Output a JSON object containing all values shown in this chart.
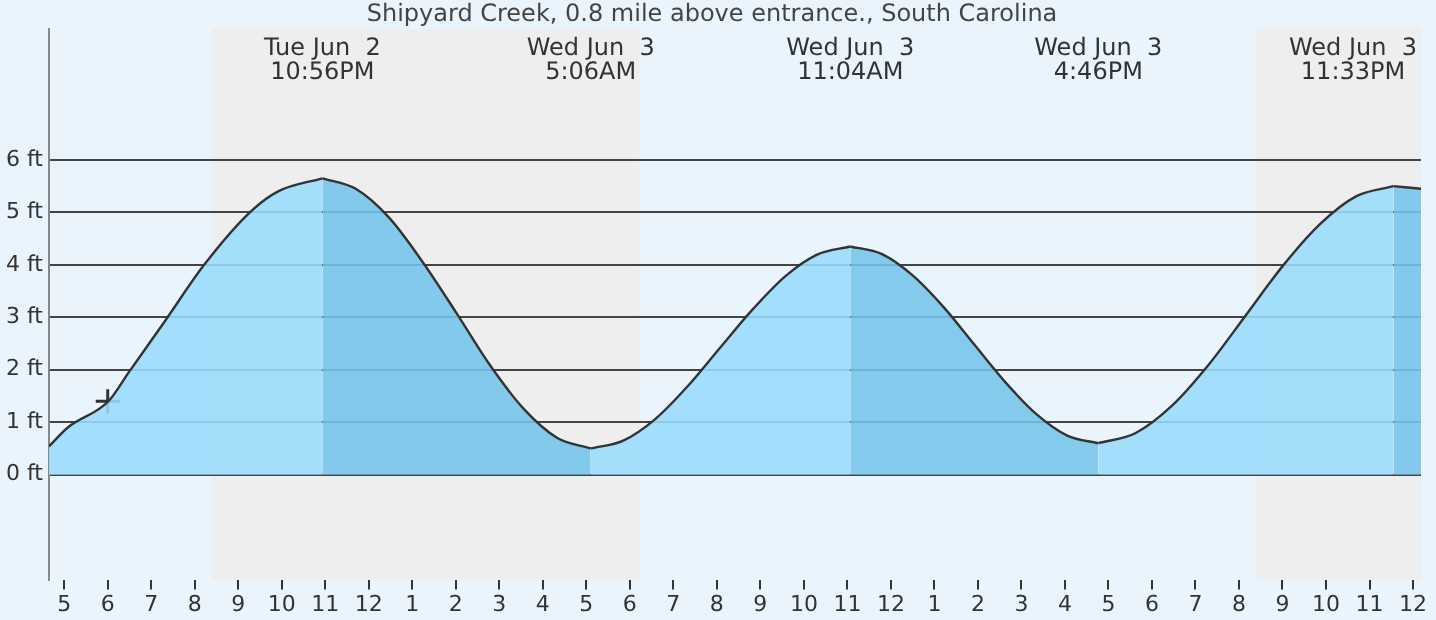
{
  "chart_data": {
    "type": "area",
    "title": "Shipyard Creek, 0.8 mile above entrance., South Carolina",
    "xlim": [
      "--06-02T16:39",
      "--06-04T00:11"
    ],
    "xticks": [
      {
        "value": "--06-02T17:00",
        "label": "5"
      },
      {
        "value": "--06-02T18:00",
        "label": "6"
      },
      {
        "value": "--06-02T19:00",
        "label": "7"
      },
      {
        "value": "--06-02T20:00",
        "label": "8"
      },
      {
        "value": "--06-02T21:00",
        "label": "9"
      },
      {
        "value": "--06-02T22:00",
        "label": "10"
      },
      {
        "value": "--06-02T23:00",
        "label": "11"
      },
      {
        "value": "--06-03T00:00",
        "label": "12"
      },
      {
        "value": "--06-03T01:00",
        "label": "1"
      },
      {
        "value": "--06-03T02:00",
        "label": "2"
      },
      {
        "value": "--06-03T03:00",
        "label": "3"
      },
      {
        "value": "--06-03T04:00",
        "label": "4"
      },
      {
        "value": "--06-03T05:00",
        "label": "5"
      },
      {
        "value": "--06-03T06:00",
        "label": "6"
      },
      {
        "value": "--06-03T07:00",
        "label": "7"
      },
      {
        "value": "--06-03T08:00",
        "label": "8"
      },
      {
        "value": "--06-03T09:00",
        "label": "9"
      },
      {
        "value": "--06-03T10:00",
        "label": "10"
      },
      {
        "value": "--06-03T11:00",
        "label": "11"
      },
      {
        "value": "--06-03T12:00",
        "label": "12"
      },
      {
        "value": "--06-03T13:00",
        "label": "1"
      },
      {
        "value": "--06-03T14:00",
        "label": "2"
      },
      {
        "value": "--06-03T15:00",
        "label": "3"
      },
      {
        "value": "--06-03T16:00",
        "label": "4"
      },
      {
        "value": "--06-03T17:00",
        "label": "5"
      },
      {
        "value": "--06-03T18:00",
        "label": "6"
      },
      {
        "value": "--06-03T19:00",
        "label": "7"
      },
      {
        "value": "--06-03T20:00",
        "label": "8"
      },
      {
        "value": "--06-03T21:00",
        "label": "9"
      },
      {
        "value": "--06-03T22:00",
        "label": "10"
      },
      {
        "value": "--06-03T23:00",
        "label": "11"
      },
      {
        "value": "--06-04T00:00",
        "label": "12"
      }
    ],
    "ylim": [
      -2,
      8.5
    ],
    "yticks": [
      {
        "value": 0,
        "label": "0 ft"
      },
      {
        "value": 1,
        "label": "1 ft"
      },
      {
        "value": 2,
        "label": "2 ft"
      },
      {
        "value": 3,
        "label": "3 ft"
      },
      {
        "value": 4,
        "label": "4 ft"
      },
      {
        "value": 5,
        "label": "5 ft"
      },
      {
        "value": 6,
        "label": "6 ft"
      }
    ],
    "grid": "y",
    "legend": false,
    "bands": [
      {
        "axis": "x",
        "from": "--06-02T20:23",
        "to": "--06-03T06:13",
        "color": "#eeeeee"
      },
      {
        "axis": "x",
        "from": "--06-03T20:24",
        "to": "--06-04T00:11",
        "color": "#eeeeee"
      }
    ],
    "annotations": [
      "Tue Jun  2\n10:56PM",
      "Wed Jun  3\n5:06AM",
      "Wed Jun  3\n11:04AM",
      "Wed Jun  3\n4:46PM",
      "Wed Jun  3\n11:33PM"
    ],
    "series": [
      {
        "color": "#99dcfc",
        "marker": "none",
        "x": [
          "--06-02T16:39",
          "--06-02T17:05",
          "--06-02T18:01",
          "--06-02T18:29",
          "--06-02T19:20",
          "--06-02T20:13",
          "--06-02T21:16",
          "--06-02T21:55",
          "--06-02T22:56",
          "--06-03T05:06",
          "--06-03T05:51",
          "--06-03T06:35",
          "--06-03T07:20",
          "--06-03T08:05",
          "--06-03T08:50",
          "--06-03T09:35",
          "--06-03T10:19",
          "--06-03T11:04",
          "--06-03T16:46",
          "--06-03T17:37",
          "--06-03T18:28",
          "--06-03T19:19",
          "--06-03T20:10",
          "--06-03T21:01",
          "--06-03T21:52",
          "--06-03T22:42",
          "--06-03T23:33"
        ],
        "values": [
          0.54,
          0.9,
          1.4,
          1.95,
          2.95,
          4,
          5,
          5.4,
          5.65,
          0.5,
          0.65,
          1.06,
          1.69,
          2.43,
          3.16,
          3.79,
          4.2,
          4.35,
          0.6,
          0.79,
          1.32,
          2.11,
          3.05,
          3.99,
          4.78,
          5.31,
          5.5
        ]
      },
      {
        "color": "#74c4ea",
        "marker": "none",
        "x": [
          "--06-02T22:56",
          "--06-02T23:42",
          "--06-03T00:28",
          "--06-03T01:14",
          "--06-03T02:01",
          "--06-03T02:47",
          "--06-03T03:34",
          "--06-03T04:20",
          "--06-03T05:06",
          "--06-03T11:04",
          "--06-03T11:47",
          "--06-03T12:30",
          "--06-03T13:13",
          "--06-03T13:55",
          "--06-03T14:38",
          "--06-03T15:21",
          "--06-03T16:04",
          "--06-03T16:46",
          "--06-03T23:33",
          "--06-04T00:11"
        ],
        "values": [
          5.65,
          5.45,
          4.9,
          4.06,
          3.08,
          2.09,
          1.25,
          0.7,
          0.5,
          4.35,
          4.21,
          3.8,
          3.19,
          2.48,
          1.76,
          1.15,
          0.74,
          0.6,
          5.5,
          5.45
        ]
      },
      {
        "type": "scatter",
        "color": "#333333",
        "marker": "cross",
        "x": [
          "--06-02T18:00"
        ],
        "values": [
          1.4
        ]
      }
    ]
  }
}
